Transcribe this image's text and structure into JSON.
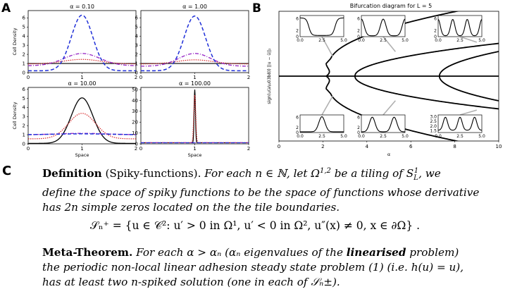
{
  "panel_a": {
    "letter": "A",
    "ylabel": "Cell Density",
    "xlabel": "Space",
    "subplots": [
      {
        "title": "α = 0.10",
        "yticks": [
          "0",
          "1",
          "2",
          "3",
          "4",
          "5",
          "6"
        ],
        "ymax": 6.8,
        "xticks": [
          "0",
          "1",
          "2"
        ]
      },
      {
        "title": "α = 1.00",
        "yticks": [
          "0",
          "1",
          "2",
          "3",
          "4",
          "5",
          "6"
        ],
        "ymax": 6.8,
        "xticks": [
          "0",
          "1",
          "2"
        ]
      },
      {
        "title": "α = 10.00",
        "yticks": [
          "0",
          "1",
          "2",
          "3",
          "4",
          "5",
          "6"
        ],
        "ymax": 6.2,
        "xticks": [
          "0",
          "1",
          "2"
        ]
      },
      {
        "title": "α = 100.00",
        "yticks": [
          "0",
          "10",
          "20",
          "30",
          "40",
          "50"
        ],
        "ymax": 52,
        "xticks": [
          "0",
          "1",
          "2"
        ]
      }
    ],
    "series_colors": {
      "black": "#000000",
      "red_dotted": "#d62728",
      "purple_dashdot": "#9b30c8",
      "blue_dashed": "#1f2fd8"
    }
  },
  "panel_b": {
    "letter": "B",
    "title": "Bifurcation diagram for L = 5",
    "ylabel": "sign(u(a\\u03b8)) ||u − ū||₂",
    "xlabel": "α",
    "xticks": [
      "0",
      "2",
      "4",
      "6",
      "8",
      "10"
    ],
    "inset_top": [
      {
        "yticks": [
          "0",
          "2",
          "6"
        ],
        "xticks": [
          "0.0",
          "2.5",
          "5.0"
        ]
      },
      {
        "yticks": [
          "0",
          "2",
          "6"
        ],
        "xticks": [
          "0.0",
          "2.5",
          "5.0"
        ]
      },
      {
        "yticks": [
          "0",
          "2",
          "6"
        ],
        "xticks": [
          "0.0",
          "2.5",
          "5.0"
        ]
      }
    ],
    "inset_bottom": [
      {
        "yticks": [
          "0",
          "2",
          "6"
        ],
        "xticks": [
          "0.0",
          "2.5",
          "5.0"
        ]
      },
      {
        "yticks": [
          "0",
          "2",
          "6"
        ],
        "xticks": [
          "0.0",
          "2.5",
          "5.0"
        ]
      },
      {
        "yticks": [
          "1.5",
          "2.0",
          "2.5",
          "3.0"
        ],
        "xticks": [
          "0.0",
          "2.5",
          "5.0"
        ]
      }
    ]
  },
  "panel_c": {
    "letter": "C",
    "definition_head": "Definition",
    "definition_name": "(Spiky-functions).",
    "definition_body_1": "For each n ∈ ℕ, let Ω",
    "definition_body_2": "be a tiling of S",
    "definition_body_3": ", we",
    "definition_line2": "define the space of spiky functions to be the space of functions whose derivative",
    "definition_line3": "has 2n simple zeros located on the the tile boundaries.",
    "equation": "𝒮ₙ⁺ = {u ∈ 𝒞²: u′ > 0  in Ω¹, u′ < 0  in Ω², u″(x) ≠ 0,  x ∈ ∂Ω} .",
    "meta_head": "Meta-Theorem.",
    "meta_line1a": "For each α > αₙ (αₙ eigenvalues of the",
    "meta_bold": "linearised",
    "meta_line1b": "problem)",
    "meta_line2": "the periodic non-local linear adhesion steady state problem (1) (i.e. h(u) = u),",
    "meta_line3": "has at least two n-spiked solution (one in each of 𝒮ₙ±)."
  }
}
